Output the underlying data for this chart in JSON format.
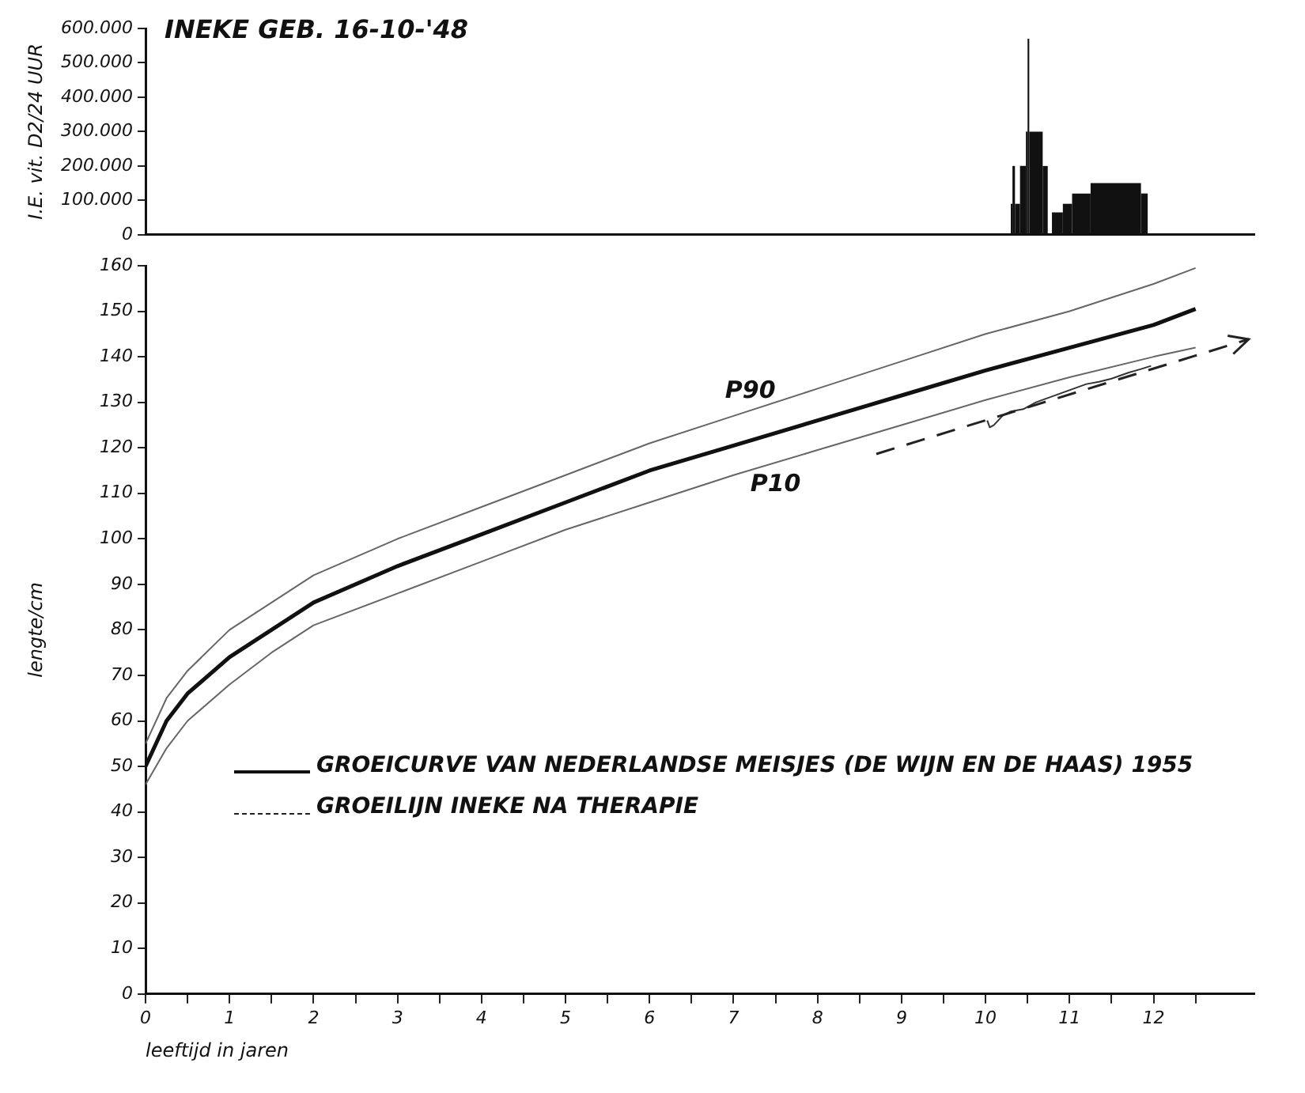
{
  "chart_data": [
    {
      "type": "histogram",
      "title": "INEKE GEB. 16-10-'48",
      "ylabel": "I.E. vit. D2/24 UUR",
      "bins": [
        10.3,
        10.32,
        10.35,
        10.41,
        10.48,
        10.5,
        10.52,
        10.68,
        10.74,
        10.79,
        10.92,
        11.03,
        11.25,
        11.85,
        11.93
      ],
      "values": [
        90000,
        200000,
        90000,
        200000,
        300000,
        570000,
        300000,
        200000,
        0,
        65000,
        90000,
        120000,
        150000,
        120000
      ],
      "color": "#111111",
      "xlim": [
        0,
        13.2
      ],
      "ylim": [
        0,
        600000
      ],
      "yticks": [
        0,
        {
          "value": 100000,
          "label": "100.000"
        },
        {
          "value": 200000,
          "label": "200.000"
        },
        {
          "value": 300000,
          "label": "300.000"
        },
        {
          "value": 400000,
          "label": "400.000"
        },
        {
          "value": 500000,
          "label": "500.000"
        },
        {
          "value": 600000,
          "label": "600.000"
        }
      ],
      "tick_labels": "y",
      "grid": false
    },
    {
      "type": "line",
      "xlabel": "leeftijd in jaren",
      "ylabel": "lengte/cm",
      "xlim": [
        0,
        13.2
      ],
      "ylim": [
        0,
        160
      ],
      "xticks": [
        0,
        {
          "value": 0.5,
          "label": null
        },
        1,
        {
          "value": 1.5,
          "label": null
        },
        2,
        {
          "value": 2.5,
          "label": null
        },
        3,
        {
          "value": 3.5,
          "label": null
        },
        4,
        {
          "value": 4.5,
          "label": null
        },
        5,
        {
          "value": 5.5,
          "label": null
        },
        6,
        {
          "value": 6.5,
          "label": null
        },
        7,
        {
          "value": 7.5,
          "label": null
        },
        8,
        {
          "value": 8.5,
          "label": null
        },
        9,
        {
          "value": 9.5,
          "label": null
        },
        10,
        {
          "value": 10.5,
          "label": null
        },
        11,
        {
          "value": 11.5,
          "label": null
        },
        12,
        {
          "value": 12.5,
          "label": null
        }
      ],
      "yticks": [
        0,
        10,
        20,
        30,
        40,
        50,
        60,
        70,
        80,
        90,
        100,
        110,
        120,
        130,
        140,
        150,
        160
      ],
      "grid": false,
      "marker": "none",
      "legend": "bottom left",
      "series": [
        {
          "name": "P90",
          "color": "#666666",
          "line_style": "solid",
          "x": [
            0,
            0.25,
            0.5,
            1,
            1.5,
            2,
            3,
            4,
            5,
            6,
            7,
            8,
            9,
            10,
            11,
            12,
            12.5
          ],
          "values": [
            55,
            65,
            71,
            80,
            86,
            92,
            100,
            107,
            114,
            121,
            127,
            133,
            139,
            145,
            150,
            156,
            159.5
          ]
        },
        {
          "name": "GROEICURVE VAN NEDERLANDSE MEISJES (DE WIJN EN DE HAAS) 1955",
          "color": "#111111",
          "line_style": "solid",
          "x": [
            0,
            0.25,
            0.5,
            1,
            1.5,
            2,
            3,
            4,
            5,
            6,
            7,
            8,
            9,
            10,
            11,
            12,
            12.5
          ],
          "values": [
            50,
            60,
            66,
            74,
            80,
            86,
            94,
            101,
            108,
            115,
            120.5,
            126,
            131.5,
            137,
            142,
            147,
            150.5
          ]
        },
        {
          "name": "P10",
          "color": "#666666",
          "line_style": "solid",
          "x": [
            0,
            0.25,
            0.5,
            1,
            1.5,
            2,
            3,
            4,
            5,
            6,
            7,
            8,
            9,
            10,
            11,
            12,
            12.5
          ],
          "values": [
            46,
            54,
            60,
            68,
            75,
            81,
            88,
            95,
            102,
            108,
            114,
            119.5,
            125,
            130.5,
            135.5,
            140,
            142
          ]
        },
        {
          "color": "#333333",
          "line_style": "solid",
          "x": [
            10.02,
            10.05,
            10.1,
            10.2,
            10.3,
            10.45,
            10.6,
            10.75,
            10.9,
            11.05,
            11.2,
            11.35,
            11.5,
            11.7,
            11.85,
            11.97
          ],
          "values": [
            126,
            124.5,
            125,
            127,
            128,
            128.5,
            130,
            131,
            132,
            133,
            134,
            134.5,
            135.2,
            136.5,
            137.3,
            138
          ]
        }
      ],
      "annotations": [
        "GROEILIJN INEKE NA THERAPIE"
      ]
    }
  ]
}
